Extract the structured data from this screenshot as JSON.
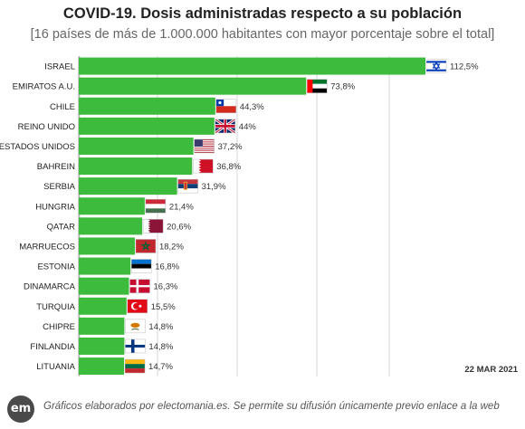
{
  "header": {
    "title": "COVID-19. Dosis administradas respecto a su población",
    "subtitle": "[16 países de más de 1.000.000 habitantes con mayor porcentaje sobre el total]"
  },
  "chart_data": {
    "type": "bar",
    "orientation": "horizontal",
    "title": "COVID-19. Dosis administradas respecto a su población",
    "subtitle": "[16 países de más de 1.000.000 habitantes con mayor porcentaje sobre el total]",
    "categories": [
      "ISRAEL",
      "EMIRATOS A.U.",
      "CHILE",
      "REINO UNIDO",
      "ESTADOS UNIDOS",
      "BAHREIN",
      "SERBIA",
      "HUNGRIA",
      "QATAR",
      "MARRUECOS",
      "ESTONIA",
      "DINAMARCA",
      "TURQUIA",
      "CHIPRE",
      "FINLANDIA",
      "LITUANIA"
    ],
    "values": [
      112.5,
      73.8,
      44.3,
      44,
      37.2,
      36.8,
      31.9,
      21.4,
      20.6,
      18.2,
      16.8,
      16.3,
      15.5,
      14.8,
      14.8,
      14.7
    ],
    "value_labels": [
      "112,5%",
      "73,8%",
      "44,3%",
      "44%",
      "37,2%",
      "36,8%",
      "31,9%",
      "21,4%",
      "20,6%",
      "18,2%",
      "16,8%",
      "16,3%",
      "15,5%",
      "14,8%",
      "14,8%",
      "14,7%"
    ],
    "flags": [
      "flag-israel",
      "flag-uae",
      "flag-chile",
      "flag-uk",
      "flag-usa",
      "flag-bahrain",
      "flag-serbia",
      "flag-hungary",
      "flag-qatar",
      "flag-morocco",
      "flag-estonia",
      "flag-denmark",
      "flag-turkey",
      "flag-cyprus",
      "flag-finland",
      "flag-lithuania"
    ],
    "xlim": [
      0,
      112.5
    ],
    "grid": "vertical",
    "bar_color": "#3dbb3d"
  },
  "date": "22 MAR 2021",
  "footer": {
    "logo": "em",
    "text": "Gráficos elaborados por electomania.es. Se permite su difusión únicamente previo enlace a la web"
  }
}
